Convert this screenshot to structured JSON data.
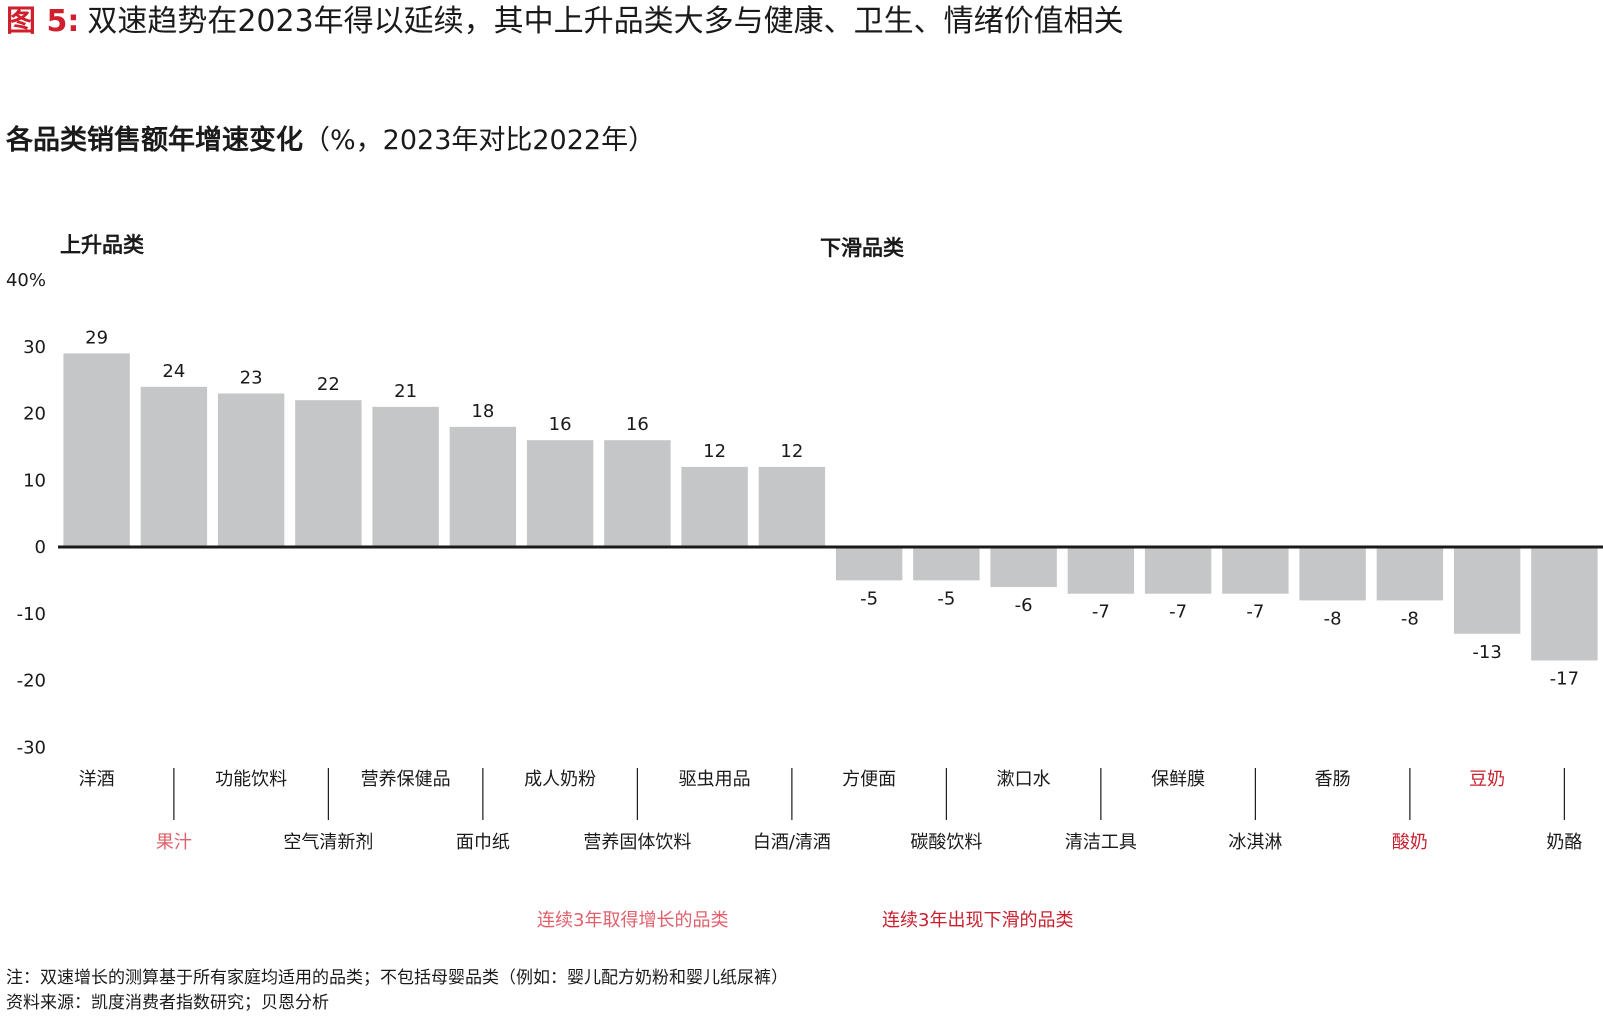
{
  "figure": {
    "label": "图 5",
    "title": "双速趋势在2023年得以延续，其中上升品类大多与健康、卫生、情绪价值相关"
  },
  "subtitle": {
    "main": "各品类销售额年增速变化",
    "paren": "（%，2023年对比2022年）"
  },
  "legend": {
    "up": "连续3年取得增长的品类",
    "down": "连续3年出现下滑的品类"
  },
  "notes": {
    "note": "注：双速增长的测算基于所有家庭均适用的品类；不包括母婴品类（例如：婴儿配方奶粉和婴儿纸尿裤）",
    "source": "资料来源：凯度消费者指数研究；贝恩分析"
  },
  "colors": {
    "bar": "#c5c6c8",
    "axis": "#1a1a1a",
    "text": "#1a1a1a",
    "accent": "#d0202e",
    "highlight_up": "#e0606c",
    "highlight_down": "#c8202e"
  },
  "chart_data": {
    "type": "bar",
    "section_labels": [
      "上升品类",
      "下滑品类"
    ],
    "y_axis": {
      "ticks": [
        40,
        30,
        20,
        10,
        0,
        -10,
        -20,
        -30
      ],
      "tick_labels": [
        "40%",
        "30",
        "20",
        "10",
        "0",
        "-10",
        "-20",
        "-30"
      ],
      "ylim": [
        -30,
        40
      ]
    },
    "categories": [
      "洋酒",
      "果汁",
      "功能饮料",
      "空气清新剂",
      "营养保健品",
      "面巾纸",
      "成人奶粉",
      "营养固体饮料",
      "驱虫用品",
      "白酒/清酒",
      "方便面",
      "碳酸饮料",
      "漱口水",
      "清洁工具",
      "保鲜膜",
      "冰淇淋",
      "香肠",
      "酸奶",
      "豆奶",
      "奶酪"
    ],
    "values": [
      29,
      24,
      23,
      22,
      21,
      18,
      16,
      16,
      12,
      12,
      -5,
      -5,
      -6,
      -7,
      -7,
      -7,
      -8,
      -8,
      -13,
      -17
    ],
    "highlighted_categories": {
      "up": [
        "果汁"
      ],
      "down": [
        "酸奶",
        "豆奶"
      ]
    },
    "grid": false,
    "legend": "bottom-center"
  }
}
